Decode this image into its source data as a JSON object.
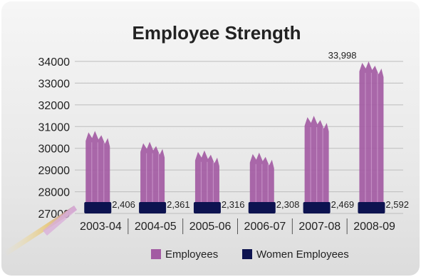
{
  "chart_data": {
    "type": "bar",
    "title": "Employee Strength",
    "categories": [
      "2003-04",
      "2004-05",
      "2005-06",
      "2006-07",
      "2007-08",
      "2008-09"
    ],
    "series": [
      {
        "name": "Employees",
        "values": [
          30800,
          30300,
          29900,
          29800,
          31500,
          33998
        ],
        "color": "#a35ba3"
      },
      {
        "name": "Women Employees",
        "values": [
          2406,
          2361,
          2316,
          2308,
          2469,
          2592
        ],
        "color": "#0d1350"
      }
    ],
    "women_labels": [
      "2,406",
      "2,361",
      "2,316",
      "2,308",
      "2,469",
      "2,592"
    ],
    "peak_label": "33,998",
    "y_ticks": [
      "27000",
      "28000",
      "29000",
      "30000",
      "31000",
      "32000",
      "33000",
      "34000"
    ],
    "ylim": [
      27000,
      34000
    ],
    "grid": true,
    "legend_position": "bottom"
  }
}
